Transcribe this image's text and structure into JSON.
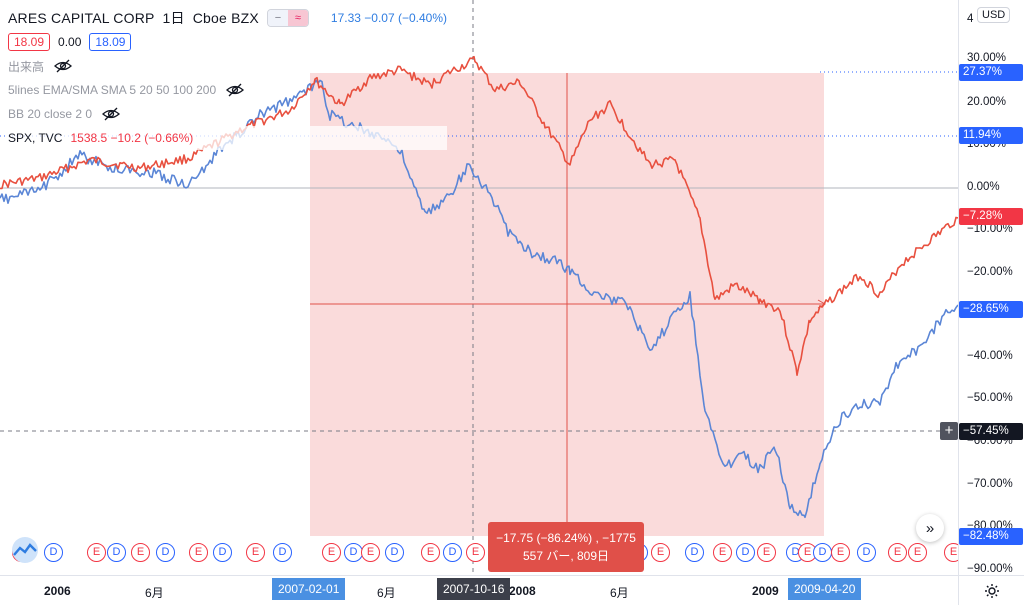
{
  "legend": {
    "title": "ARES CAPITAL CORP",
    "interval": "1日",
    "exchange": "Cboe BZX",
    "compare_quote": "17.33  −0.07 (−0.40%)",
    "ohlc_left": "18.09",
    "ohlc_mid": "0.00",
    "ohlc_right": "18.09",
    "indicators": [
      "出来高",
      "5lines EMA/SMA SMA 5 20 50 100 200",
      "BB 20 close 2 0"
    ],
    "spx_name": "SPX, TVC",
    "spx_values": "1538.5  −10.2 (−0.66%)"
  },
  "price_axis": {
    "currency": "USD",
    "ticks": [
      "30.00%",
      "20.00%",
      "10.00%",
      "0.00%",
      "−10.00%",
      "−20.00%",
      "−30.00%",
      "−40.00%",
      "−50.00%",
      "−60.00%",
      "−70.00%",
      "−80.00%",
      "−90.00%"
    ],
    "top_partial": "4",
    "labels": [
      {
        "text": "27.37%",
        "color": "#2962ff"
      },
      {
        "text": "11.94%",
        "color": "#2962ff"
      },
      {
        "text": "−7.28%",
        "color": "#f23645"
      },
      {
        "text": "−28.65%",
        "color": "#2962ff"
      },
      {
        "text": "−57.45%",
        "color": "#131722"
      },
      {
        "text": "−82.48%",
        "color": "#2962ff"
      }
    ]
  },
  "time_axis": {
    "ticks": [
      {
        "text": "2006",
        "bold": true
      },
      {
        "text": "6月",
        "bold": false
      },
      {
        "text": "6月",
        "bold": false
      },
      {
        "text": "2008",
        "bold": true
      },
      {
        "text": "6月",
        "bold": false
      },
      {
        "text": "2009",
        "bold": true
      }
    ],
    "range_start": "2007-02-01",
    "crosshair_date": "2007-10-16",
    "range_end": "2009-04-20"
  },
  "measure": {
    "line1": "−17.75 (−86.24%) , −1775",
    "line2": "557 バー, 809日"
  },
  "events": [
    "E",
    "D",
    "E",
    "D",
    "E",
    "D",
    "E",
    "D",
    "E",
    "D",
    "E",
    "D",
    "E",
    "D",
    "E",
    "D",
    "E",
    "D",
    "E",
    "D",
    "E",
    "D",
    "E",
    "D",
    "E",
    "D",
    "E",
    "D",
    "E",
    "D",
    "E",
    "D",
    "E",
    "D",
    "E",
    "E",
    "E",
    "E"
  ],
  "colors": {
    "ares": "#e8503f",
    "spx": "#5b86d6",
    "measure_fill": "#f9d7d7",
    "accent_blue": "#2962ff"
  }
}
